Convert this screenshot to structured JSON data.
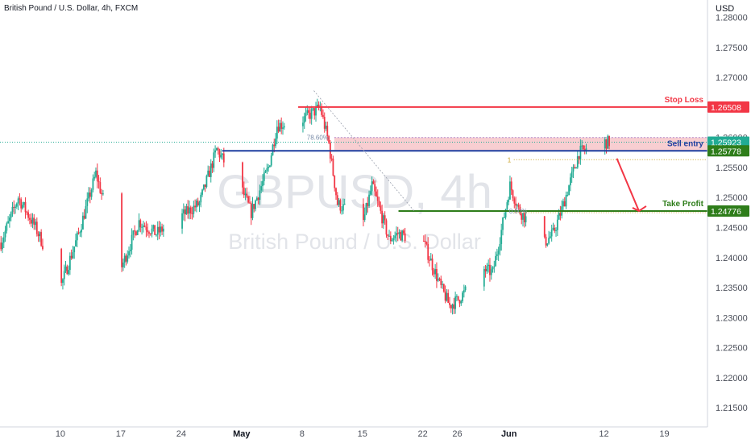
{
  "header": {
    "symbol_title": "British Pound / U.S. Dollar, 4h, FXCM"
  },
  "watermark": {
    "ticker": "GBPUSD, 4h",
    "name": "British Pound / U.S. Dollar"
  },
  "axis": {
    "currency": "USD",
    "y_ticks": [
      "1.28000",
      "1.27500",
      "1.27000",
      "1.26500",
      "1.26000",
      "1.25500",
      "1.25000",
      "1.24500",
      "1.24000",
      "1.23500",
      "1.23000",
      "1.22500",
      "1.22000",
      "1.21500"
    ],
    "x_ticks": [
      {
        "label": "10",
        "bold": false
      },
      {
        "label": "17",
        "bold": false
      },
      {
        "label": "24",
        "bold": false
      },
      {
        "label": "May",
        "bold": true
      },
      {
        "label": "8",
        "bold": false
      },
      {
        "label": "15",
        "bold": false
      },
      {
        "label": "22",
        "bold": false
      },
      {
        "label": "26",
        "bold": false
      },
      {
        "label": "Jun",
        "bold": true
      },
      {
        "label": "12",
        "bold": false
      },
      {
        "label": "19",
        "bold": false
      }
    ]
  },
  "annotations": {
    "stop_loss": {
      "label": "Stop Loss",
      "price": "1.26508",
      "color": "#f23645"
    },
    "sell_entry": {
      "label": "Sell entry",
      "price": "1.25778",
      "color": "#1e3fa0"
    },
    "take_profit": {
      "label": "Take Profit",
      "price": "1.24776",
      "color": "#2e7d1a"
    },
    "current_price": {
      "price": "1.25923",
      "color": "#22ab94"
    },
    "fib_top_label": "78.60%",
    "fib_bottom_label": "0.00%",
    "fib_marker_label": "1"
  },
  "colors": {
    "up": "#22ab94",
    "down": "#f23645",
    "zone": "#f7c5c9",
    "axis_line": "#d1d4dc"
  },
  "chart_data": {
    "type": "candlestick",
    "title": "British Pound / U.S. Dollar, 4h, FXCM",
    "ylabel": "USD",
    "ylim": [
      1.2118,
      1.2829
    ],
    "x_range": [
      "2023-04-03",
      "2023-06-24"
    ],
    "levels": [
      {
        "name": "Stop Loss",
        "value": 1.26508
      },
      {
        "name": "Sell entry",
        "value": 1.25778
      },
      {
        "name": "Take Profit",
        "value": 1.24776
      },
      {
        "name": "Last price",
        "value": 1.25923
      }
    ],
    "path_anchors": [
      {
        "date": "2023-04-03",
        "value": 1.2425
      },
      {
        "date": "2023-04-05",
        "value": 1.25
      },
      {
        "date": "2023-04-07",
        "value": 1.245
      },
      {
        "date": "2023-04-10",
        "value": 1.2355
      },
      {
        "date": "2023-04-12",
        "value": 1.244
      },
      {
        "date": "2023-04-14",
        "value": 1.254
      },
      {
        "date": "2023-04-17",
        "value": 1.2385
      },
      {
        "date": "2023-04-19",
        "value": 1.246
      },
      {
        "date": "2023-04-21",
        "value": 1.244
      },
      {
        "date": "2023-04-24",
        "value": 1.247
      },
      {
        "date": "2023-04-26",
        "value": 1.249
      },
      {
        "date": "2023-04-28",
        "value": 1.258
      },
      {
        "date": "2023-05-01",
        "value": 1.251
      },
      {
        "date": "2023-05-02",
        "value": 1.2475
      },
      {
        "date": "2023-05-04",
        "value": 1.255
      },
      {
        "date": "2023-05-05",
        "value": 1.262
      },
      {
        "date": "2023-05-08",
        "value": 1.263
      },
      {
        "date": "2023-05-10",
        "value": 1.265
      },
      {
        "date": "2023-05-11",
        "value": 1.259
      },
      {
        "date": "2023-05-12",
        "value": 1.249
      },
      {
        "date": "2023-05-15",
        "value": 1.246
      },
      {
        "date": "2023-05-16",
        "value": 1.252
      },
      {
        "date": "2023-05-18",
        "value": 1.243
      },
      {
        "date": "2023-05-19",
        "value": 1.244
      },
      {
        "date": "2023-05-22",
        "value": 1.2425
      },
      {
        "date": "2023-05-24",
        "value": 1.235
      },
      {
        "date": "2023-05-25",
        "value": 1.232
      },
      {
        "date": "2023-05-26",
        "value": 1.233
      },
      {
        "date": "2023-05-29",
        "value": 1.238
      },
      {
        "date": "2023-05-30",
        "value": 1.2375
      },
      {
        "date": "2023-05-31",
        "value": 1.2445
      },
      {
        "date": "2023-06-01",
        "value": 1.252
      },
      {
        "date": "2023-06-02",
        "value": 1.248
      },
      {
        "date": "2023-06-05",
        "value": 1.2425
      },
      {
        "date": "2023-06-06",
        "value": 1.244
      },
      {
        "date": "2023-06-07",
        "value": 1.248
      },
      {
        "date": "2023-06-09",
        "value": 1.2575
      },
      {
        "date": "2023-06-12",
        "value": 1.2592
      }
    ]
  }
}
